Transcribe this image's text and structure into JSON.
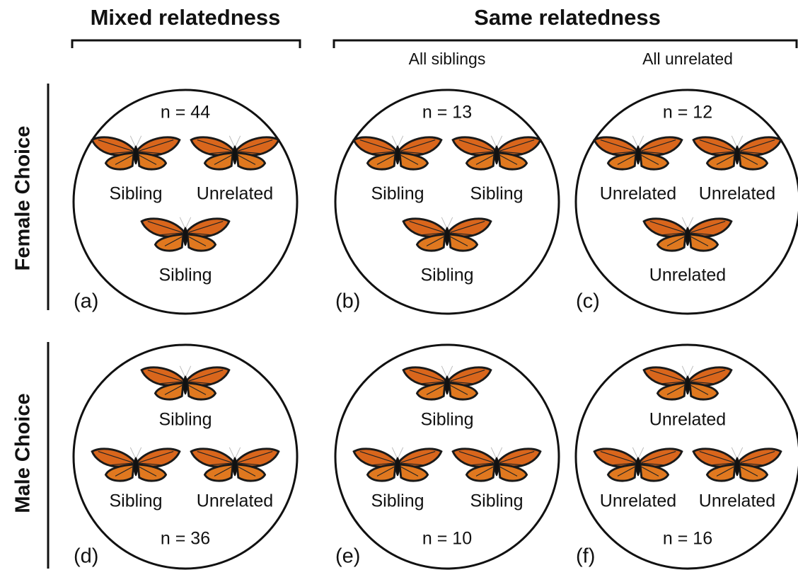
{
  "headers": {
    "mixed": "Mixed relatedness",
    "same": "Same relatedness"
  },
  "subheaders": [
    "All siblings",
    "All unrelated"
  ],
  "rows": [
    "Female Choice",
    "Male Choice"
  ],
  "panels": [
    {
      "label": "(a)",
      "n": "n = 44",
      "butterflies": [
        "Sibling",
        "Unrelated",
        "Sibling"
      ]
    },
    {
      "label": "(b)",
      "n": "n = 13",
      "butterflies": [
        "Sibling",
        "Sibling",
        "Sibling"
      ]
    },
    {
      "label": "(c)",
      "n": "n = 12",
      "butterflies": [
        "Unrelated",
        "Unrelated",
        "Unrelated"
      ]
    },
    {
      "label": "(d)",
      "n": "n = 36",
      "butterflies": [
        "Sibling",
        "Sibling",
        "Unrelated"
      ]
    },
    {
      "label": "(e)",
      "n": "n = 10",
      "butterflies": [
        "Sibling",
        "Sibling",
        "Sibling"
      ]
    },
    {
      "label": "(f)",
      "n": "n = 16",
      "butterflies": [
        "Unrelated",
        "Unrelated",
        "Unrelated"
      ]
    }
  ]
}
